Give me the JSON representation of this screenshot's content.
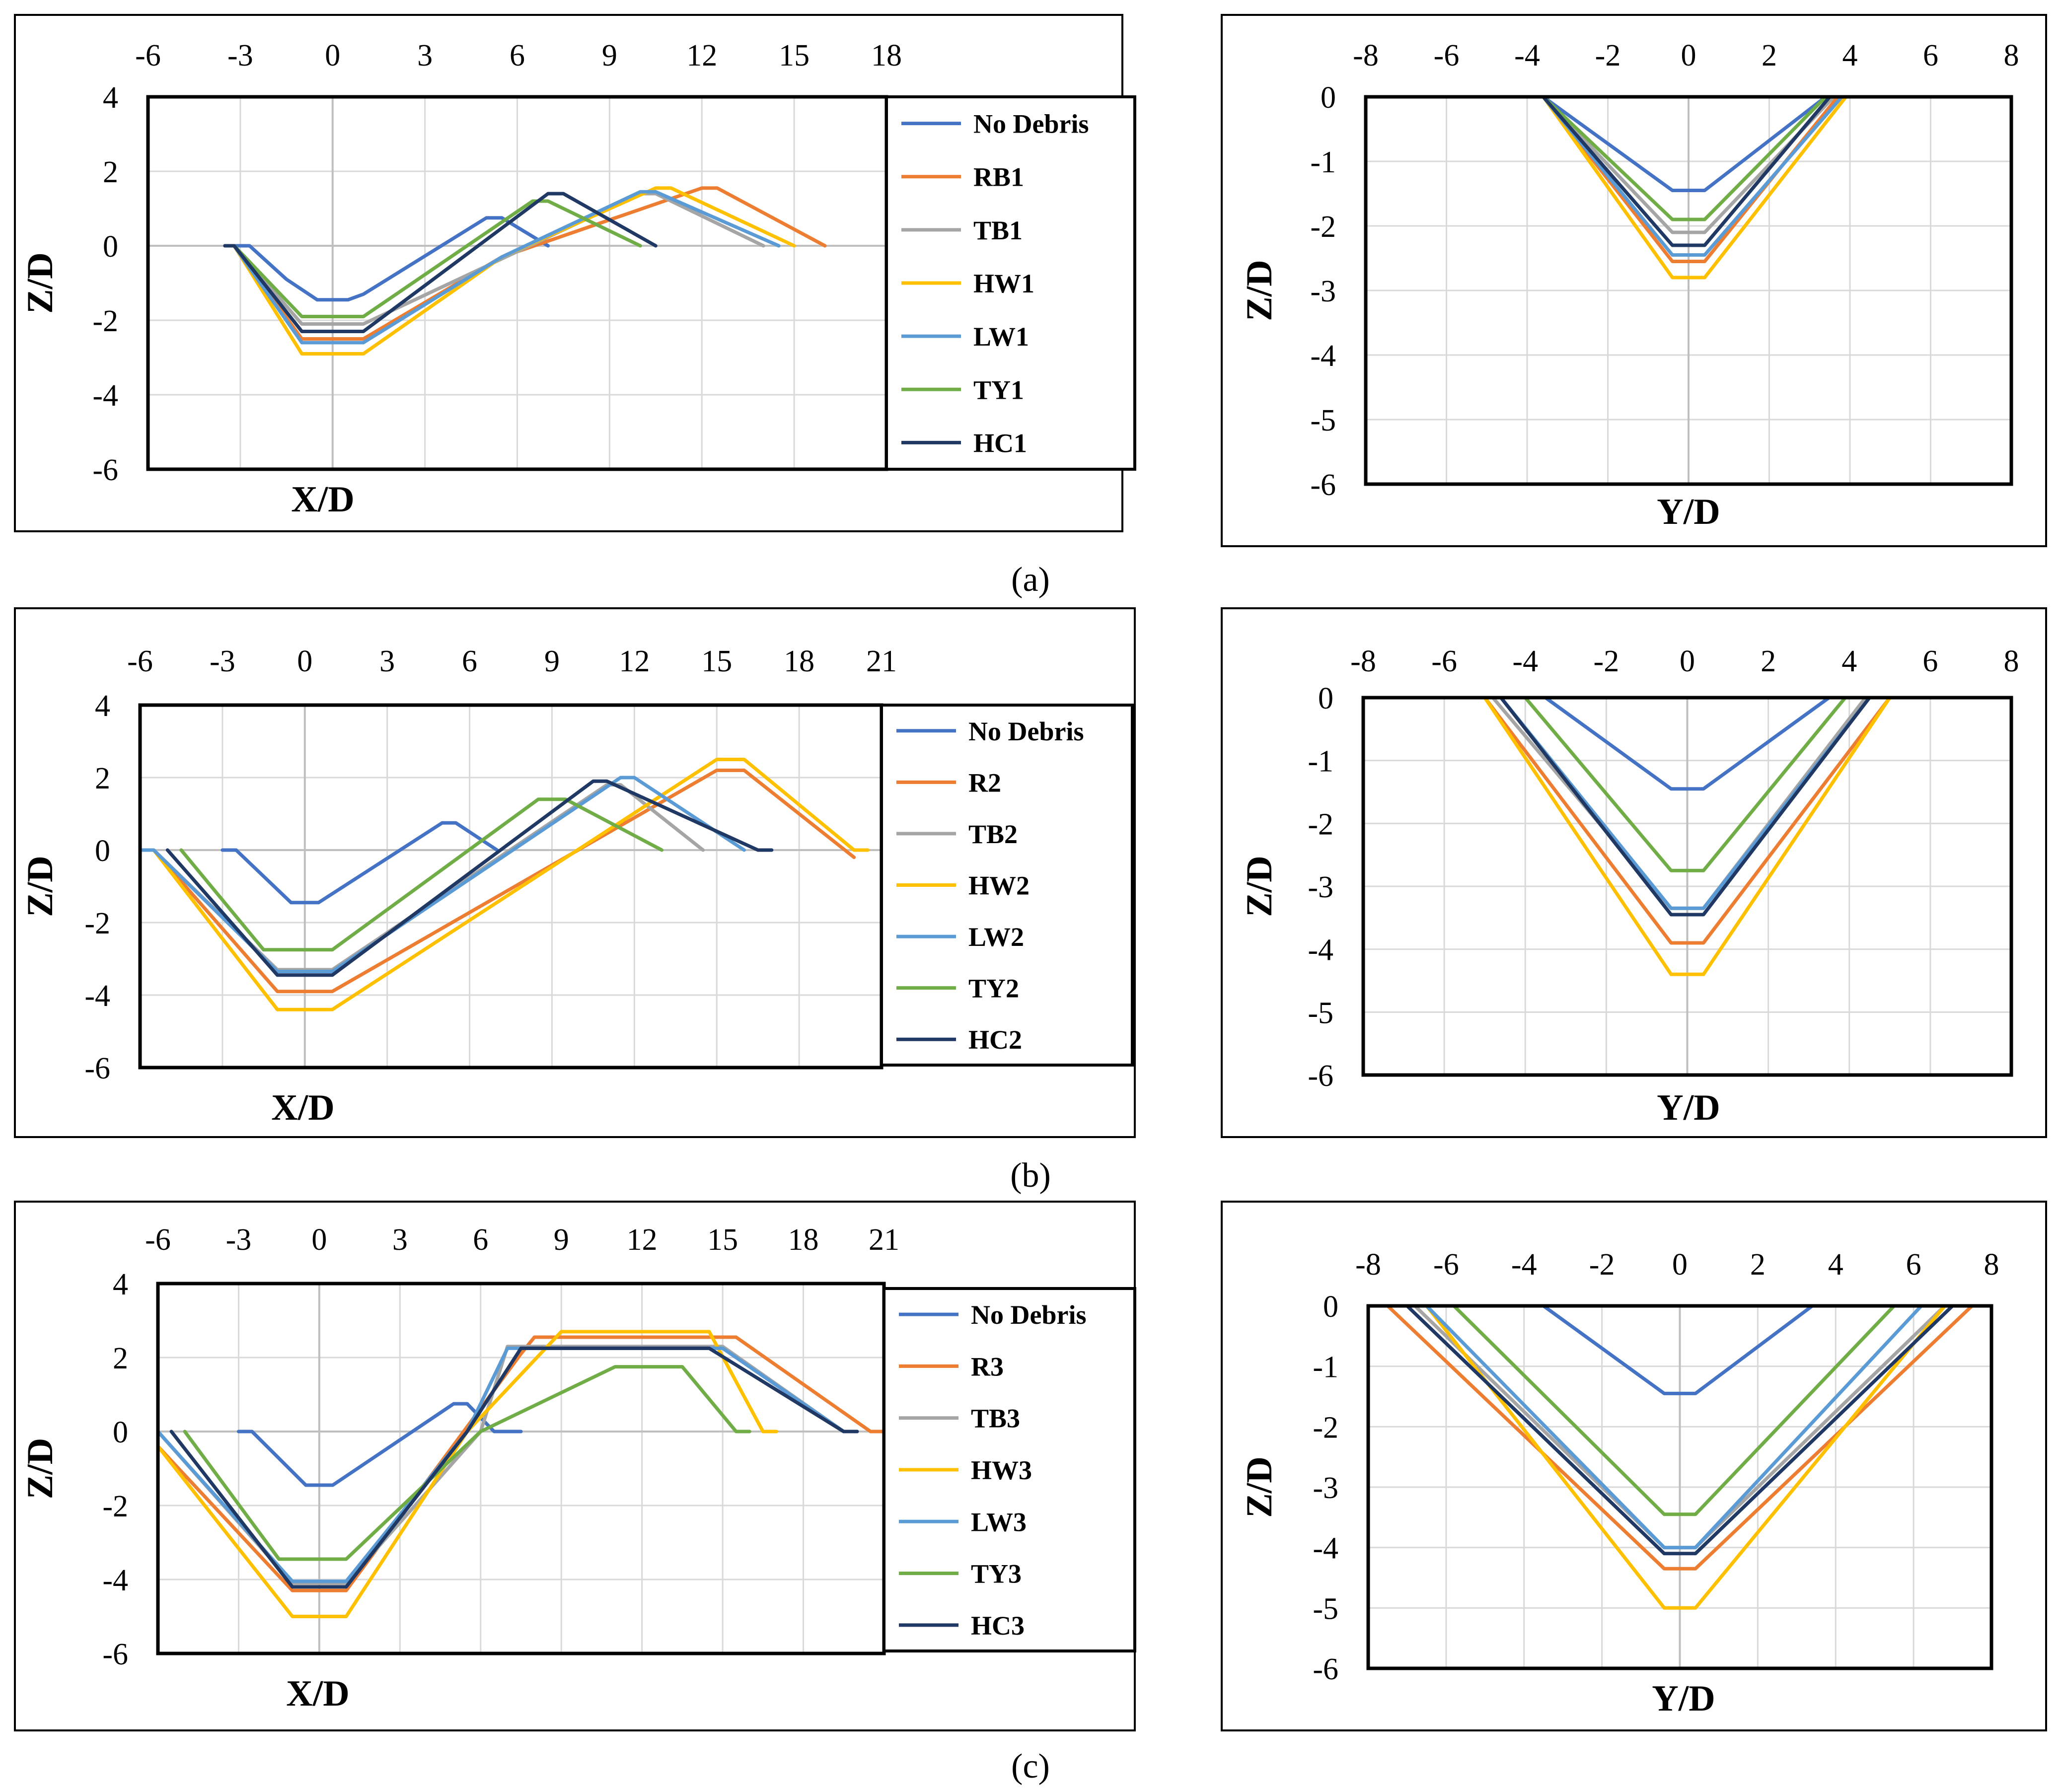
{
  "figure_captions": [
    "(a)",
    "(b)",
    "(c)"
  ],
  "chart_data": [
    {
      "id": "a-x",
      "type": "line",
      "row": "a",
      "panel": "profile-x",
      "xlabel": "X/D",
      "ylabel": "Z/D",
      "xlim": [
        -6,
        18
      ],
      "ylim": [
        -6,
        4
      ],
      "xticks": [
        "-6",
        "-3",
        "0",
        "3",
        "6",
        "9",
        "12",
        "15",
        "18"
      ],
      "yticks": [
        "4",
        "2",
        "0",
        "-2",
        "-4",
        "-6"
      ],
      "series": [
        {
          "name": "No Debris",
          "color": "#4472C4",
          "x": [
            -3.5,
            -3,
            -2.7,
            -1.5,
            -0.5,
            0.5,
            1,
            5,
            5.5,
            6,
            7
          ],
          "y": [
            0,
            0,
            0,
            -0.9,
            -1.45,
            -1.45,
            -1.3,
            0.75,
            0.75,
            0.5,
            0
          ]
        },
        {
          "name": "RB1",
          "color": "#ED7D31",
          "x": [
            -3.5,
            -3.2,
            -1,
            1,
            5.5,
            12,
            12.5,
            16
          ],
          "y": [
            0,
            0,
            -2.5,
            -2.5,
            -0.3,
            1.55,
            1.55,
            0
          ]
        },
        {
          "name": "TB1",
          "color": "#A5A5A5",
          "x": [
            -3.5,
            -3.2,
            -1,
            1,
            10,
            10.5,
            14
          ],
          "y": [
            0,
            0,
            -2.1,
            -2.1,
            1.4,
            1.4,
            0
          ]
        },
        {
          "name": "HW1",
          "color": "#FFC000",
          "x": [
            -3.5,
            -3.2,
            -1,
            1,
            5.5,
            10.5,
            11,
            15
          ],
          "y": [
            0,
            0,
            -2.9,
            -2.9,
            -0.3,
            1.55,
            1.55,
            0
          ]
        },
        {
          "name": "LW1",
          "color": "#5B9BD5",
          "x": [
            -3.5,
            -3.2,
            -1,
            1,
            5.5,
            10,
            10.5,
            14.5
          ],
          "y": [
            0,
            0,
            -2.6,
            -2.6,
            -0.3,
            1.45,
            1.45,
            0
          ]
        },
        {
          "name": "TY1",
          "color": "#70AD47",
          "x": [
            -3.5,
            -3.2,
            -1,
            1,
            6.5,
            7,
            10
          ],
          "y": [
            0,
            0,
            -1.9,
            -1.9,
            1.2,
            1.2,
            0
          ]
        },
        {
          "name": "HC1",
          "color": "#203864",
          "x": [
            -3.5,
            -3.2,
            -1,
            1,
            7,
            7.5,
            10.5
          ],
          "y": [
            0,
            0,
            -2.3,
            -2.3,
            1.4,
            1.4,
            0
          ]
        }
      ]
    },
    {
      "id": "a-y",
      "type": "line",
      "row": "a",
      "panel": "profile-y",
      "xlabel": "Y/D",
      "ylabel": "Z/D",
      "xlim": [
        -8,
        8
      ],
      "ylim": [
        -6,
        0
      ],
      "xticks": [
        "-8",
        "-6",
        "-4",
        "-2",
        "0",
        "2",
        "4",
        "6",
        "8"
      ],
      "yticks": [
        "0",
        "-1",
        "-2",
        "-3",
        "-4",
        "-5",
        "-6"
      ],
      "series": [
        {
          "name": "No Debris",
          "color": "#4472C4",
          "x": [
            -4,
            -3.6,
            -0.4,
            0.4,
            3.4,
            3.9
          ],
          "y": [
            0,
            0,
            -1.45,
            -1.45,
            0,
            0
          ]
        },
        {
          "name": "RB1",
          "color": "#ED7D31",
          "x": [
            -4,
            -3.6,
            -0.4,
            0.4,
            3.7,
            4.3
          ],
          "y": [
            0,
            0,
            -2.55,
            -2.55,
            0,
            0
          ]
        },
        {
          "name": "TB1",
          "color": "#A5A5A5",
          "x": [
            -4,
            -3.6,
            -0.4,
            0.4,
            3.6,
            4.2
          ],
          "y": [
            0,
            0,
            -2.1,
            -2.1,
            0,
            0
          ]
        },
        {
          "name": "HW1",
          "color": "#FFC000",
          "x": [
            -4,
            -3.6,
            -0.4,
            0.4,
            3.9,
            4.3
          ],
          "y": [
            0,
            0,
            -2.8,
            -2.8,
            0,
            0
          ]
        },
        {
          "name": "LW1",
          "color": "#5B9BD5",
          "x": [
            -4,
            -3.6,
            -0.4,
            0.4,
            3.8,
            4.5
          ],
          "y": [
            0,
            0,
            -2.45,
            -2.45,
            0,
            0
          ]
        },
        {
          "name": "TY1",
          "color": "#70AD47",
          "x": [
            -4,
            -3.6,
            -0.4,
            0.4,
            3.4,
            3.9
          ],
          "y": [
            0,
            0,
            -1.9,
            -1.9,
            0,
            0
          ]
        },
        {
          "name": "HC1",
          "color": "#203864",
          "x": [
            -4,
            -3.6,
            -0.4,
            0.4,
            3.5,
            4.1
          ],
          "y": [
            0,
            0,
            -2.3,
            -2.3,
            0,
            0
          ]
        }
      ]
    },
    {
      "id": "b-x",
      "type": "line",
      "row": "b",
      "panel": "profile-x",
      "xlabel": "X/D",
      "ylabel": "Z/D",
      "xlim": [
        -6,
        21
      ],
      "ylim": [
        -6,
        4
      ],
      "xticks": [
        "-6",
        "-3",
        "0",
        "3",
        "6",
        "9",
        "12",
        "15",
        "18",
        "21"
      ],
      "yticks": [
        "4",
        "2",
        "0",
        "-2",
        "-4",
        "-6"
      ],
      "series": [
        {
          "name": "No Debris",
          "color": "#4472C4",
          "x": [
            -3,
            -2.5,
            -0.5,
            0.5,
            5,
            5.5,
            7
          ],
          "y": [
            0,
            0,
            -1.45,
            -1.45,
            0.75,
            0.75,
            0
          ]
        },
        {
          "name": "R2",
          "color": "#ED7D31",
          "x": [
            -5.5,
            -1,
            1,
            15,
            16,
            20
          ],
          "y": [
            0,
            -3.9,
            -3.9,
            2.2,
            2.2,
            -0.2
          ]
        },
        {
          "name": "TB2",
          "color": "#A5A5A5",
          "x": [
            -5.5,
            -1,
            1,
            11,
            11.5,
            14.5
          ],
          "y": [
            0,
            -3.3,
            -3.3,
            1.8,
            1.8,
            0
          ]
        },
        {
          "name": "HW2",
          "color": "#FFC000",
          "x": [
            -5.5,
            -1,
            1,
            15,
            16,
            20,
            20.5
          ],
          "y": [
            0,
            -4.4,
            -4.4,
            2.5,
            2.5,
            0,
            0
          ]
        },
        {
          "name": "LW2",
          "color": "#5B9BD5",
          "x": [
            -6,
            -5.5,
            -1,
            1,
            11.5,
            12,
            16
          ],
          "y": [
            0,
            0,
            -3.35,
            -3.35,
            2,
            2,
            0
          ]
        },
        {
          "name": "TY2",
          "color": "#70AD47",
          "x": [
            -4.5,
            -1.5,
            1,
            8.5,
            9.5,
            13
          ],
          "y": [
            0,
            -2.75,
            -2.75,
            1.4,
            1.4,
            0
          ]
        },
        {
          "name": "HC2",
          "color": "#203864",
          "x": [
            -5,
            -1,
            1,
            10.5,
            11,
            16.5,
            17
          ],
          "y": [
            0,
            -3.45,
            -3.45,
            1.9,
            1.9,
            0,
            0
          ]
        }
      ]
    },
    {
      "id": "b-y",
      "type": "line",
      "row": "b",
      "panel": "profile-y",
      "xlabel": "Y/D",
      "ylabel": "Z/D",
      "xlim": [
        -8,
        8
      ],
      "ylim": [
        -6,
        0
      ],
      "xticks": [
        "-8",
        "-6",
        "-4",
        "-2",
        "0",
        "2",
        "4",
        "6",
        "8"
      ],
      "yticks": [
        "0",
        "-1",
        "-2",
        "-3",
        "-4",
        "-5",
        "-6"
      ],
      "series": [
        {
          "name": "No Debris",
          "color": "#4472C4",
          "x": [
            -4.5,
            -3.5,
            -0.4,
            0.4,
            3.5,
            4.2
          ],
          "y": [
            0,
            0,
            -1.45,
            -1.45,
            0,
            0
          ]
        },
        {
          "name": "R2",
          "color": "#ED7D31",
          "x": [
            -5.6,
            -5,
            -0.4,
            0.4,
            5,
            5.2
          ],
          "y": [
            0,
            0,
            -3.9,
            -3.9,
            0,
            0
          ]
        },
        {
          "name": "TB2",
          "color": "#A5A5A5",
          "x": [
            -5,
            -4.8,
            -0.4,
            0.4,
            4.4,
            4.8
          ],
          "y": [
            0,
            0,
            -3.35,
            -3.35,
            0,
            0
          ]
        },
        {
          "name": "HW2",
          "color": "#FFC000",
          "x": [
            -5,
            -0.4,
            0.4,
            5
          ],
          "y": [
            0,
            -4.4,
            -4.4,
            0
          ]
        },
        {
          "name": "LW2",
          "color": "#5B9BD5",
          "x": [
            -5,
            -4.6,
            -0.4,
            0.4,
            4.5,
            4.9
          ],
          "y": [
            0,
            0,
            -3.35,
            -3.35,
            0,
            0
          ]
        },
        {
          "name": "TY2",
          "color": "#70AD47",
          "x": [
            -4.3,
            -4,
            -0.4,
            0.4,
            3.9,
            4.3
          ],
          "y": [
            0,
            0,
            -2.75,
            -2.75,
            0,
            0
          ]
        },
        {
          "name": "HC2",
          "color": "#203864",
          "x": [
            -5.1,
            -4.6,
            -0.4,
            0.4,
            4.5,
            4.9
          ],
          "y": [
            0,
            0,
            -3.45,
            -3.45,
            0,
            0
          ]
        }
      ]
    },
    {
      "id": "c-x",
      "type": "line",
      "row": "c",
      "panel": "profile-x",
      "xlabel": "X/D",
      "ylabel": "Z/D",
      "xlim": [
        -6,
        21
      ],
      "ylim": [
        -6,
        4
      ],
      "xticks": [
        "-6",
        "-3",
        "0",
        "3",
        "6",
        "9",
        "12",
        "15",
        "18",
        "21"
      ],
      "yticks": [
        "4",
        "2",
        "0",
        "-2",
        "-4",
        "-6"
      ],
      "series": [
        {
          "name": "No Debris",
          "color": "#4472C4",
          "x": [
            -3,
            -2.5,
            -0.5,
            0.5,
            5,
            5.5,
            6.5,
            7.5
          ],
          "y": [
            0,
            0,
            -1.45,
            -1.45,
            0.75,
            0.75,
            0,
            0
          ]
        },
        {
          "name": "R3",
          "color": "#ED7D31",
          "x": [
            -6,
            -1,
            1,
            7.5,
            8,
            15.5,
            20.5,
            21
          ],
          "y": [
            -0.4,
            -4.3,
            -4.3,
            2.1,
            2.55,
            2.55,
            0,
            0
          ]
        },
        {
          "name": "TB3",
          "color": "#A5A5A5",
          "x": [
            -6,
            -1,
            1,
            6,
            7,
            15,
            19.5,
            20
          ],
          "y": [
            0,
            -4.1,
            -4.1,
            0,
            2.3,
            2.3,
            0,
            0
          ]
        },
        {
          "name": "HW3",
          "color": "#FFC000",
          "x": [
            -6,
            -1,
            1,
            5.5,
            9,
            14.5,
            16.5,
            17
          ],
          "y": [
            -0.4,
            -5,
            -5,
            0,
            2.7,
            2.7,
            0,
            0
          ]
        },
        {
          "name": "LW3",
          "color": "#5B9BD5",
          "x": [
            -6,
            -1,
            1,
            5.5,
            7,
            15,
            19.5,
            20
          ],
          "y": [
            0,
            -4.05,
            -4.05,
            0,
            2.25,
            2.25,
            0,
            0
          ]
        },
        {
          "name": "TY3",
          "color": "#70AD47",
          "x": [
            -5,
            -1.5,
            1,
            6,
            11,
            13.5,
            15.5,
            16
          ],
          "y": [
            0,
            -3.45,
            -3.45,
            0,
            1.75,
            1.75,
            0,
            0
          ]
        },
        {
          "name": "HC3",
          "color": "#203864",
          "x": [
            -5.5,
            -1,
            1,
            5.5,
            7.5,
            14.5,
            19.5,
            20
          ],
          "y": [
            0,
            -4.2,
            -4.2,
            0,
            2.25,
            2.25,
            0,
            0
          ]
        }
      ]
    },
    {
      "id": "c-y",
      "type": "line",
      "row": "c",
      "panel": "profile-y",
      "xlabel": "Y/D",
      "ylabel": "Z/D",
      "xlim": [
        -8,
        8
      ],
      "ylim": [
        -6,
        0
      ],
      "xticks": [
        "-8",
        "-6",
        "-4",
        "-2",
        "0",
        "2",
        "4",
        "6",
        "8"
      ],
      "yticks": [
        "0",
        "-1",
        "-2",
        "-3",
        "-4",
        "-5",
        "-6"
      ],
      "series": [
        {
          "name": "No Debris",
          "color": "#4472C4",
          "x": [
            -4,
            -3.5,
            -0.4,
            0.4,
            3.4,
            4
          ],
          "y": [
            0,
            0,
            -1.45,
            -1.45,
            0,
            0
          ]
        },
        {
          "name": "R3",
          "color": "#ED7D31",
          "x": [
            -7.5,
            -0.4,
            0.4,
            7.5
          ],
          "y": [
            0,
            -4.35,
            -4.35,
            0
          ]
        },
        {
          "name": "TB3",
          "color": "#A5A5A5",
          "x": [
            -6.8,
            -0.4,
            0.4,
            6.8
          ],
          "y": [
            0,
            -4.0,
            -4.0,
            0
          ]
        },
        {
          "name": "HW3",
          "color": "#FFC000",
          "x": [
            -6.5,
            -0.4,
            0.4,
            6.8
          ],
          "y": [
            0,
            -5.0,
            -5.0,
            0
          ]
        },
        {
          "name": "LW3",
          "color": "#5B9BD5",
          "x": [
            -6.5,
            -0.4,
            0.4,
            6.2
          ],
          "y": [
            0,
            -4.0,
            -4.0,
            0
          ]
        },
        {
          "name": "TY3",
          "color": "#70AD47",
          "x": [
            -5.8,
            -0.4,
            0.4,
            5.5
          ],
          "y": [
            0,
            -3.45,
            -3.45,
            0
          ]
        },
        {
          "name": "HC3",
          "color": "#203864",
          "x": [
            -7,
            -0.4,
            0.4,
            7
          ],
          "y": [
            0,
            -4.1,
            -4.1,
            0
          ]
        }
      ]
    }
  ]
}
